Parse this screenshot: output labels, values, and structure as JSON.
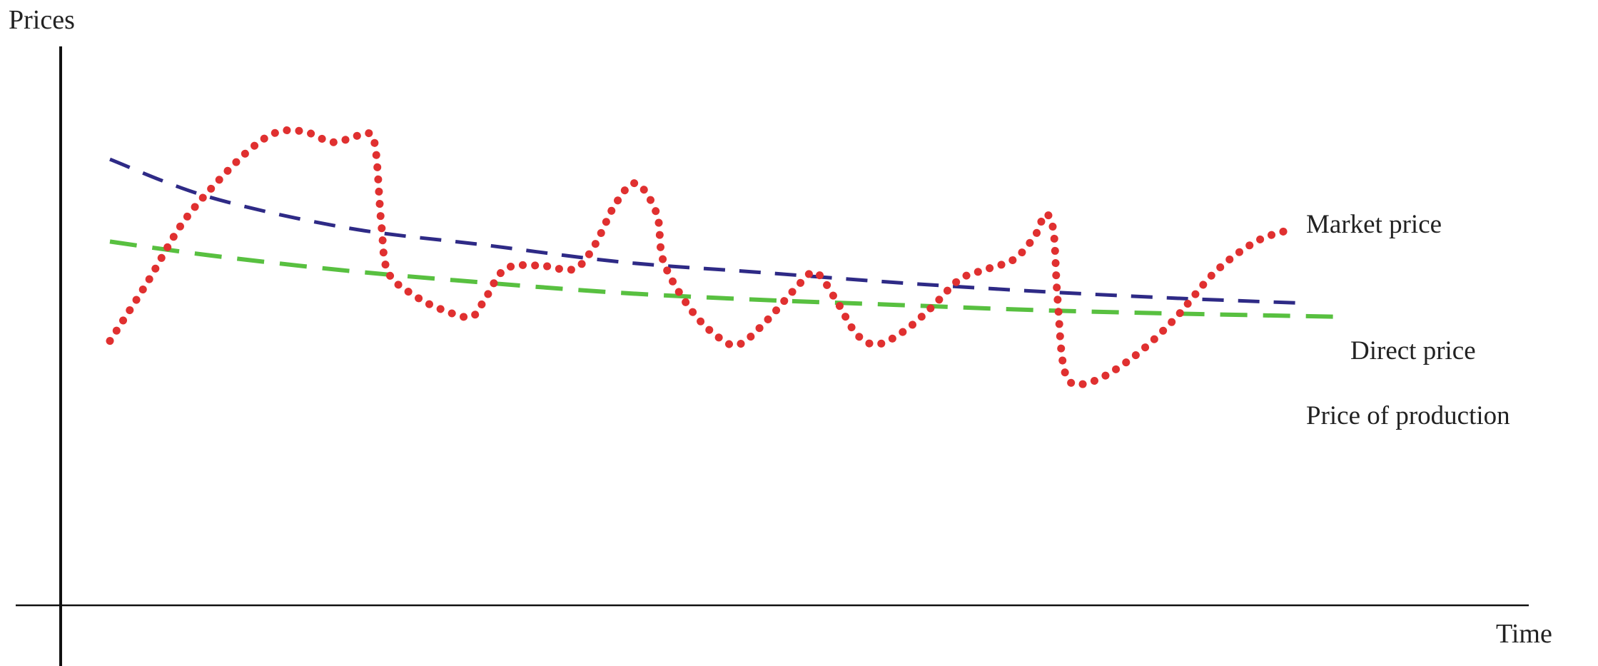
{
  "chart_data": {
    "type": "line",
    "title": "",
    "xlabel": "Time",
    "ylabel": "Prices",
    "xlim": [
      0,
      100
    ],
    "ylim": [
      0,
      100
    ],
    "grid": false,
    "legend_placement": "right, inline at line ends",
    "series": [
      {
        "name": "Market price",
        "style": "dotted",
        "color": "#e03030",
        "points": [
          [
            2.8,
            38
          ],
          [
            5.5,
            55
          ],
          [
            8,
            72
          ],
          [
            10.5,
            84
          ],
          [
            13,
            94
          ],
          [
            15,
            99
          ],
          [
            17,
            99
          ],
          [
            19,
            96
          ],
          [
            21,
            98
          ],
          [
            22,
            96
          ],
          [
            22.5,
            72
          ],
          [
            23,
            58
          ],
          [
            25,
            51
          ],
          [
            27,
            47
          ],
          [
            29,
            45
          ],
          [
            30,
            50
          ],
          [
            31.5,
            59
          ],
          [
            34,
            60
          ],
          [
            36.5,
            59
          ],
          [
            38,
            66
          ],
          [
            39.5,
            78
          ],
          [
            41,
            84
          ],
          [
            42.5,
            75
          ],
          [
            43,
            61
          ],
          [
            45,
            47
          ],
          [
            47,
            39
          ],
          [
            48.5,
            37
          ],
          [
            50.5,
            44
          ],
          [
            52.5,
            53
          ],
          [
            54,
            58
          ],
          [
            55.5,
            50
          ],
          [
            57,
            40
          ],
          [
            58.5,
            37
          ],
          [
            60.5,
            41
          ],
          [
            62.5,
            48
          ],
          [
            64.5,
            56
          ],
          [
            66.5,
            59
          ],
          [
            68.5,
            62
          ],
          [
            70,
            69
          ],
          [
            70.7,
            75
          ],
          [
            71.3,
            70
          ],
          [
            71.6,
            50
          ],
          [
            72.2,
            28
          ],
          [
            74,
            26
          ],
          [
            77,
            33
          ],
          [
            80,
            44
          ],
          [
            83,
            58
          ],
          [
            86,
            67
          ],
          [
            88.5,
            70.5
          ]
        ]
      },
      {
        "name": "Direct price",
        "style": "dashed",
        "color": "#2e2a86",
        "points": [
          [
            2.8,
            91
          ],
          [
            10,
            80
          ],
          [
            20,
            71
          ],
          [
            30,
            66
          ],
          [
            40,
            61
          ],
          [
            50,
            58
          ],
          [
            60,
            55
          ],
          [
            70,
            52.5
          ],
          [
            80,
            50.5
          ],
          [
            89.5,
            49
          ]
        ]
      },
      {
        "name": "Price of production",
        "style": "dashed",
        "color": "#58c040",
        "points": [
          [
            2.8,
            67
          ],
          [
            10,
            63
          ],
          [
            20,
            58.5
          ],
          [
            30,
            55
          ],
          [
            40,
            52
          ],
          [
            50,
            50
          ],
          [
            60,
            48.5
          ],
          [
            70,
            47
          ],
          [
            80,
            46
          ],
          [
            92.5,
            45
          ]
        ]
      }
    ]
  }
}
